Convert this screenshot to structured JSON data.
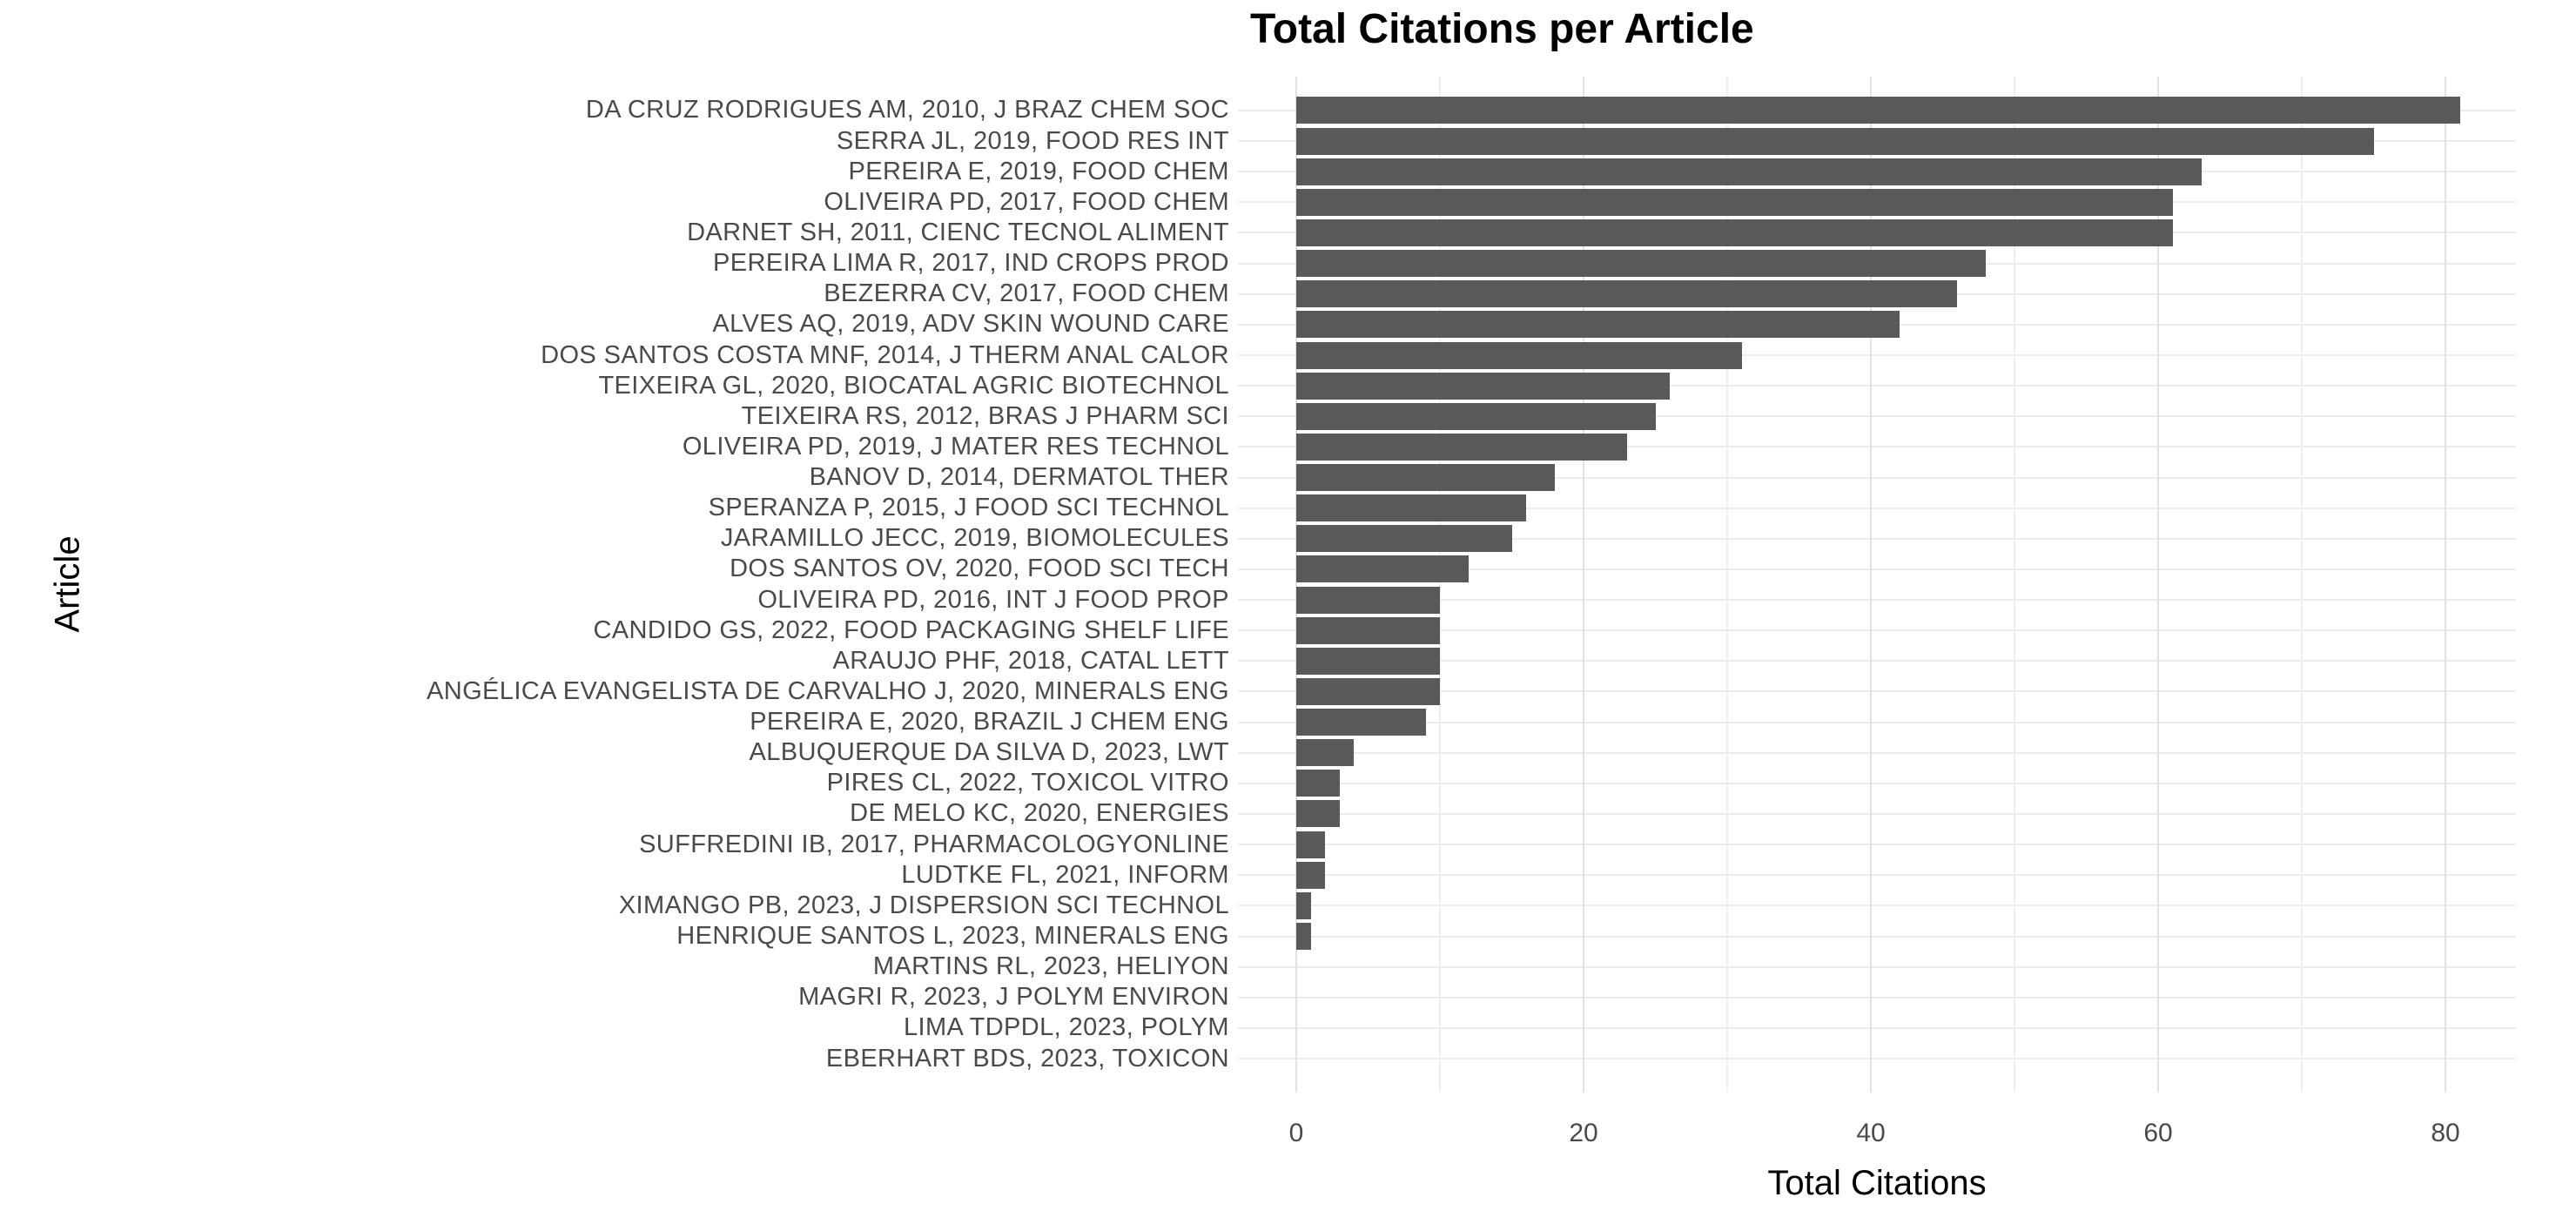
{
  "chart_data": {
    "type": "bar",
    "orientation": "horizontal",
    "title": "Total Citations per Article",
    "xlabel": "Total Citations",
    "ylabel": "Article",
    "categories": [
      "DA CRUZ RODRIGUES AM, 2010, J BRAZ CHEM SOC",
      "SERRA JL, 2019, FOOD RES INT",
      "PEREIRA E, 2019, FOOD CHEM",
      "OLIVEIRA PD, 2017, FOOD CHEM",
      "DARNET SH, 2011, CIENC TECNOL ALIMENT",
      "PEREIRA LIMA R, 2017, IND CROPS PROD",
      "BEZERRA CV, 2017, FOOD CHEM",
      "ALVES AQ, 2019, ADV SKIN WOUND CARE",
      "DOS SANTOS COSTA MNF, 2014, J THERM ANAL CALOR",
      "TEIXEIRA GL, 2020, BIOCATAL AGRIC BIOTECHNOL",
      "TEIXEIRA RS, 2012, BRAS J PHARM SCI",
      "OLIVEIRA PD, 2019, J MATER RES TECHNOL",
      "BANOV D, 2014, DERMATOL THER",
      "SPERANZA P, 2015, J FOOD SCI TECHNOL",
      "JARAMILLO JECC, 2019, BIOMOLECULES",
      "DOS SANTOS OV, 2020, FOOD SCI TECH",
      "OLIVEIRA PD, 2016, INT J FOOD PROP",
      "CANDIDO GS, 2022, FOOD PACKAGING SHELF LIFE",
      "ARAUJO PHF, 2018, CATAL LETT",
      "ANGÉLICA EVANGELISTA DE CARVALHO J, 2020, MINERALS ENG",
      "PEREIRA E, 2020, BRAZIL J CHEM ENG",
      "ALBUQUERQUE DA SILVA D, 2023, LWT",
      "PIRES CL, 2022, TOXICOL VITRO",
      "DE MELO KC, 2020, ENERGIES",
      "SUFFREDINI IB, 2017, PHARMACOLOGYONLINE",
      "LUDTKE FL, 2021, INFORM",
      "XIMANGO PB, 2023, J DISPERSION SCI TECHNOL",
      "HENRIQUE SANTOS L, 2023, MINERALS ENG",
      "MARTINS RL, 2023, HELIYON",
      "MAGRI R, 2023, J POLYM ENVIRON",
      "LIMA TDPDL, 2023, POLYM",
      "EBERHART BDS, 2023, TOXICON"
    ],
    "values": [
      81,
      75,
      63,
      61,
      61,
      48,
      46,
      42,
      31,
      26,
      25,
      23,
      18,
      16,
      15,
      12,
      10,
      10,
      10,
      10,
      9,
      4,
      3,
      3,
      2,
      2,
      1,
      1,
      0,
      0,
      0,
      0
    ],
    "xlim": [
      0,
      85
    ],
    "x_ticks": [
      0,
      20,
      40,
      60,
      80
    ],
    "x_minor_gridlines": [
      10,
      30,
      50,
      70
    ],
    "grid": true,
    "legend": "none",
    "colors": {
      "bar": "#595959",
      "grid_major": "#e2e2e2",
      "grid_minor": "#efefef",
      "grid_horizontal": "#ebebeb",
      "tick_text": "#4a4a4a",
      "title_text": "#000000",
      "background": "#ffffff"
    }
  }
}
